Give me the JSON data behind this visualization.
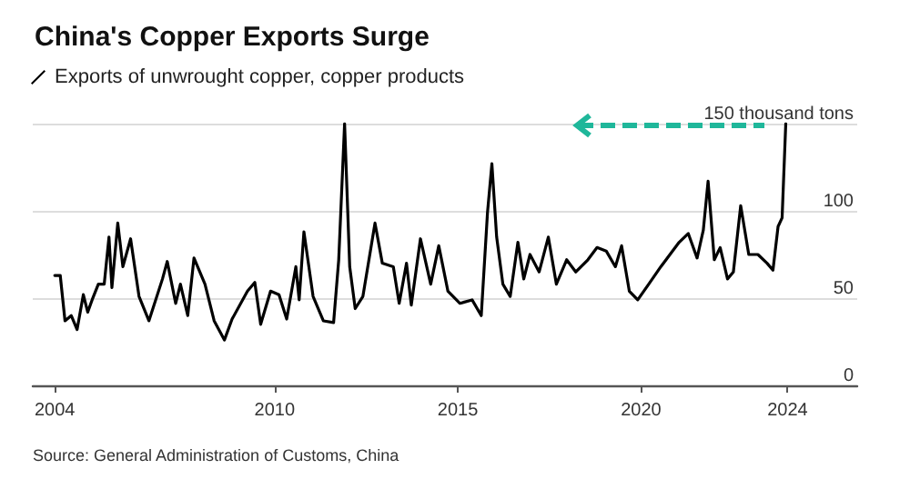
{
  "chart_data": {
    "type": "line",
    "title": "China's Copper Exports Surge",
    "legend": "top left",
    "x": [
      2004.0,
      2004.15,
      2004.28,
      2004.45,
      2004.61,
      2004.78,
      2004.9,
      2005.02,
      2005.19,
      2005.35,
      2005.48,
      2005.56,
      2005.72,
      2005.86,
      2006.07,
      2006.3,
      2006.57,
      2006.94,
      2007.07,
      2007.3,
      2007.43,
      2007.63,
      2007.8,
      2008.1,
      2008.35,
      2008.63,
      2008.84,
      2009.26,
      2009.46,
      2009.62,
      2009.89,
      2010.12,
      2010.33,
      2010.58,
      2010.67,
      2010.8,
      2011.05,
      2011.33,
      2011.61,
      2011.75,
      2011.91,
      2012.05,
      2012.2,
      2012.41,
      2012.74,
      2012.94,
      2013.24,
      2013.4,
      2013.6,
      2013.73,
      2013.98,
      2014.26,
      2014.48,
      2014.73,
      2015.06,
      2015.39,
      2015.64,
      2015.81,
      2015.93,
      2016.06,
      2016.23,
      2016.43,
      2016.64,
      2016.8,
      2016.97,
      2017.22,
      2017.47,
      2017.69,
      2017.97,
      2018.22,
      2018.55,
      2018.8,
      2019.05,
      2019.3,
      2019.47,
      2019.68,
      2019.91,
      2020.21,
      2020.54,
      2020.79,
      2021.04,
      2021.29,
      2021.53,
      2021.7,
      2021.83,
      2022.0,
      2022.16,
      2022.36,
      2022.52,
      2022.72,
      2022.94,
      2023.19,
      2023.44,
      2023.6,
      2023.74,
      2023.85,
      2023.95
    ],
    "series": [
      {
        "name": "Exports of unwrought copper, copper products",
        "color": "#000000",
        "values": [
          63,
          63,
          37,
          40,
          32,
          52,
          42,
          49,
          58,
          58,
          85,
          56,
          93,
          68,
          84,
          51,
          37,
          61,
          71,
          47,
          58,
          40,
          73,
          58,
          37,
          26,
          38,
          54,
          59,
          35,
          54,
          52,
          38,
          68,
          49,
          88,
          51,
          37,
          36,
          72,
          150,
          68,
          44,
          51,
          93,
          70,
          68,
          47,
          70,
          46,
          84,
          58,
          80,
          54,
          47,
          49,
          40,
          99,
          127,
          85,
          58,
          51,
          82,
          61,
          75,
          65,
          85,
          58,
          72,
          65,
          72,
          79,
          77,
          68,
          80,
          54,
          49,
          58,
          68,
          75,
          82,
          87,
          73,
          89,
          117,
          72,
          79,
          61,
          65,
          103,
          75,
          75,
          70,
          66,
          91,
          96,
          150
        ]
      }
    ],
    "xlim": [
      2003.4,
      2025.9
    ],
    "xticks": [
      2004,
      2010,
      2015,
      2020,
      2024
    ],
    "ylim": [
      0,
      150
    ],
    "yticks": [
      0,
      50,
      100,
      {
        "value": 150,
        "label": "150 thousand tons"
      }
    ],
    "grid": "y",
    "marker": "none",
    "line_style": "solid",
    "annotations": [
      "Source: General Administration of Customs, China"
    ]
  }
}
